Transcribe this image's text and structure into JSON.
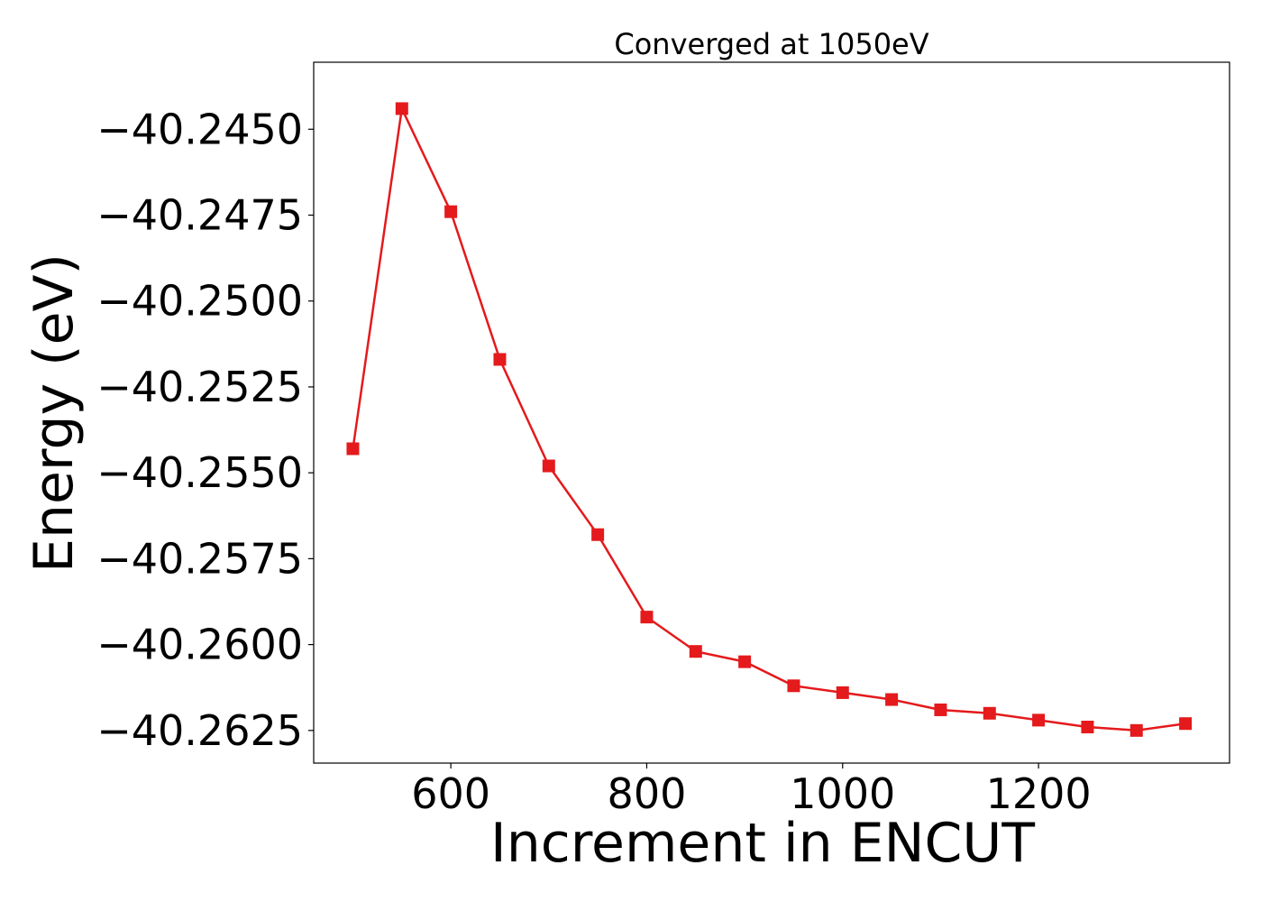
{
  "chart_data": {
    "type": "line",
    "title": "Converged at 1050eV",
    "xlabel": "Increment in ENCUT",
    "ylabel": "Energy (eV)",
    "xlim": [
      460,
      1395
    ],
    "ylim": [
      -40.26345,
      -40.24305
    ],
    "x_ticks": [
      600,
      800,
      1000,
      1200
    ],
    "x_tick_labels": [
      "600",
      "800",
      "1000",
      "1200"
    ],
    "y_ticks": [
      -40.245,
      -40.2475,
      -40.25,
      -40.2525,
      -40.255,
      -40.2575,
      -40.26,
      -40.2625
    ],
    "y_tick_labels": [
      "−40.2450",
      "−40.2475",
      "−40.2500",
      "−40.2525",
      "−40.2550",
      "−40.2575",
      "−40.2600",
      "−40.2625"
    ],
    "grid": false,
    "series": [
      {
        "color": "#e41a1c",
        "marker": "square",
        "x": [
          500,
          550,
          600,
          650,
          700,
          750,
          800,
          850,
          900,
          950,
          1000,
          1050,
          1100,
          1150,
          1200,
          1250,
          1300,
          1350
        ],
        "y": [
          -40.2543,
          -40.2444,
          -40.2474,
          -40.2517,
          -40.2548,
          -40.2568,
          -40.2592,
          -40.2602,
          -40.2605,
          -40.2612,
          -40.2614,
          -40.2616,
          -40.2619,
          -40.262,
          -40.2622,
          -40.2624,
          -40.2625,
          -40.2623
        ]
      }
    ]
  }
}
